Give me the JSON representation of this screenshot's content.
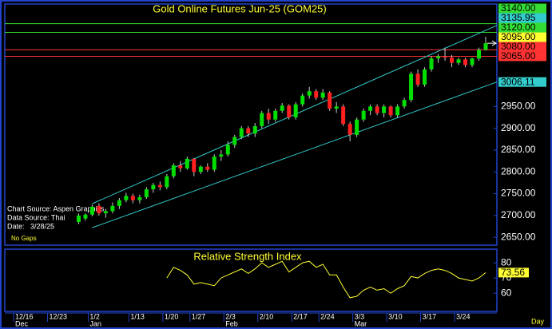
{
  "chart_data": [
    {
      "type": "candlestick",
      "title": "Gold Online Futures Jun-25 (GOM25)",
      "categories": [
        "12/16",
        null,
        null,
        null,
        null,
        "12/23",
        null,
        null,
        null,
        null,
        null,
        "1/2",
        null,
        null,
        null,
        null,
        null,
        "1/13",
        null,
        null,
        null,
        null,
        "1/20",
        null,
        null,
        null,
        "1/27",
        null,
        null,
        null,
        null,
        "2/3",
        null,
        null,
        null,
        null,
        "2/10",
        null,
        null,
        null,
        null,
        "2/17",
        null,
        null,
        null,
        "2/24",
        null,
        null,
        null,
        null,
        "3/3",
        null,
        null,
        null,
        null,
        "3/10",
        null,
        null,
        null,
        null,
        "3/17",
        null,
        null,
        null,
        null,
        "3/24",
        null,
        null,
        null,
        null
      ],
      "months": [
        "Dec",
        null,
        null,
        null,
        null,
        null,
        null,
        null,
        null,
        null,
        null,
        "Jan",
        null,
        null,
        null,
        null,
        null,
        null,
        null,
        null,
        null,
        null,
        null,
        null,
        null,
        null,
        null,
        null,
        null,
        null,
        null,
        "Feb",
        null,
        null,
        null,
        null,
        null,
        null,
        null,
        null,
        null,
        null,
        null,
        null,
        null,
        null,
        null,
        null,
        null,
        null,
        "Mar",
        null,
        null,
        null,
        null,
        null,
        null,
        null,
        null,
        null,
        null,
        null,
        null,
        null,
        null,
        null,
        null,
        null,
        null,
        null
      ],
      "x_label": "Day",
      "open": [
        null,
        null,
        null,
        null,
        null,
        null,
        null,
        null,
        null,
        2685,
        2693,
        2702,
        2722,
        2705,
        2710,
        2722,
        2735,
        2745,
        2735,
        2742,
        2760,
        2770,
        2765,
        2790,
        2815,
        2808,
        2830,
        2800,
        2812,
        2805,
        2835,
        2840,
        2862,
        2880,
        2900,
        2888,
        2905,
        2935,
        2920,
        2940,
        2952,
        2925,
        2955,
        2975,
        2985,
        2970,
        2982,
        2945,
        2950,
        2910,
        2885,
        2920,
        2940,
        2950,
        2935,
        2950,
        2930,
        2950,
        2965,
        3025,
        3000,
        3035,
        3060,
        3065,
        3062,
        3050,
        3058,
        3045,
        3060,
        3080
      ],
      "high": [
        null,
        null,
        null,
        null,
        null,
        null,
        null,
        null,
        null,
        2705,
        2705,
        2725,
        2728,
        2715,
        2730,
        2740,
        2752,
        2750,
        2748,
        2765,
        2775,
        2778,
        2795,
        2820,
        2825,
        2835,
        2832,
        2815,
        2820,
        2840,
        2850,
        2870,
        2885,
        2905,
        2905,
        2912,
        2940,
        2945,
        2945,
        2958,
        2955,
        2960,
        2980,
        2995,
        2990,
        2990,
        2985,
        2960,
        2955,
        2915,
        2925,
        2945,
        2955,
        2955,
        2955,
        2952,
        2955,
        2970,
        3030,
        3035,
        3040,
        3065,
        3070,
        3085,
        3068,
        3062,
        3062,
        3062,
        3085,
        3110
      ],
      "low": [
        null,
        null,
        null,
        null,
        null,
        null,
        null,
        null,
        null,
        2680,
        2688,
        2698,
        2700,
        2695,
        2705,
        2715,
        2730,
        2728,
        2728,
        2738,
        2752,
        2758,
        2760,
        2785,
        2800,
        2805,
        2790,
        2795,
        2800,
        2800,
        2825,
        2835,
        2855,
        2875,
        2880,
        2880,
        2900,
        2910,
        2915,
        2935,
        2920,
        2920,
        2950,
        2968,
        2965,
        2965,
        2940,
        2935,
        2905,
        2870,
        2880,
        2915,
        2930,
        2930,
        2925,
        2925,
        2925,
        2945,
        2960,
        2995,
        2995,
        3030,
        3050,
        3055,
        3040,
        3045,
        3040,
        3040,
        3055,
        3078
      ],
      "close": [
        null,
        null,
        null,
        null,
        null,
        null,
        null,
        null,
        null,
        2700,
        2702,
        2720,
        2705,
        2710,
        2722,
        2735,
        2745,
        2735,
        2742,
        2760,
        2770,
        2765,
        2790,
        2815,
        2808,
        2830,
        2800,
        2812,
        2805,
        2835,
        2840,
        2862,
        2880,
        2900,
        2888,
        2905,
        2935,
        2920,
        2940,
        2952,
        2925,
        2955,
        2975,
        2985,
        2970,
        2982,
        2945,
        2950,
        2910,
        2885,
        2920,
        2940,
        2950,
        2935,
        2950,
        2930,
        2950,
        2965,
        3025,
        3000,
        3035,
        3060,
        3065,
        3062,
        3050,
        3058,
        3045,
        3060,
        3080,
        3095
      ],
      "up_color": "#00e000",
      "down_color": "#ff2020",
      "ylim": [
        2632,
        3185
      ],
      "yticks": [
        {
          "value": 2650,
          "label": "2650.00"
        },
        {
          "value": 2700,
          "label": "2700.00"
        },
        {
          "value": 2750,
          "label": "2750.00"
        },
        {
          "value": 2800,
          "label": "2800.00"
        },
        {
          "value": 2850,
          "label": "2850.00"
        },
        {
          "value": 2900,
          "label": "2900.00"
        },
        {
          "value": 2950,
          "label": "2950.00"
        }
      ],
      "levels": [
        {
          "value": 3140,
          "label": "3140.00",
          "color": "#33dd33"
        },
        {
          "value": 3120,
          "label": "3120.00",
          "color": "#33dd33"
        },
        {
          "value": 3080,
          "label": "3080.00",
          "color": "#ff3333"
        },
        {
          "value": 3065,
          "label": "3065.00",
          "color": "#ff3333"
        }
      ],
      "trendlines": [
        {
          "start": "1/2",
          "values": [
            2727,
            3135.95
          ],
          "color": "#33cccc"
        },
        {
          "start": "1/2",
          "values": [
            2672,
            3006.11
          ],
          "color": "#33cccc"
        }
      ],
      "last_price": {
        "value": 3095,
        "label": "3095.00",
        "color": "#ffff33"
      },
      "notes": [
        "Chart Source: Aspen Graphics",
        "Data Source: Thai",
        "Date:   3/28/25"
      ],
      "gap_note": "No Gaps"
    },
    {
      "type": "line",
      "title": "Relative Strength Index",
      "color": "#ffff33",
      "values": [
        null,
        null,
        null,
        null,
        null,
        null,
        null,
        null,
        null,
        null,
        null,
        null,
        null,
        null,
        null,
        null,
        null,
        null,
        null,
        null,
        null,
        null,
        70,
        77,
        75,
        72,
        66,
        67,
        66,
        65,
        70,
        72,
        74,
        76,
        73,
        76,
        80,
        77,
        79,
        81,
        74,
        77,
        80,
        81,
        77,
        79,
        72,
        72,
        64,
        57,
        58,
        62,
        64,
        62,
        63,
        60,
        63,
        65,
        71,
        70,
        73,
        75,
        76,
        75,
        73,
        70,
        69,
        68,
        70,
        73.56
      ],
      "ylim": [
        48,
        89
      ],
      "yticks": [
        60,
        70,
        80
      ]
    }
  ]
}
